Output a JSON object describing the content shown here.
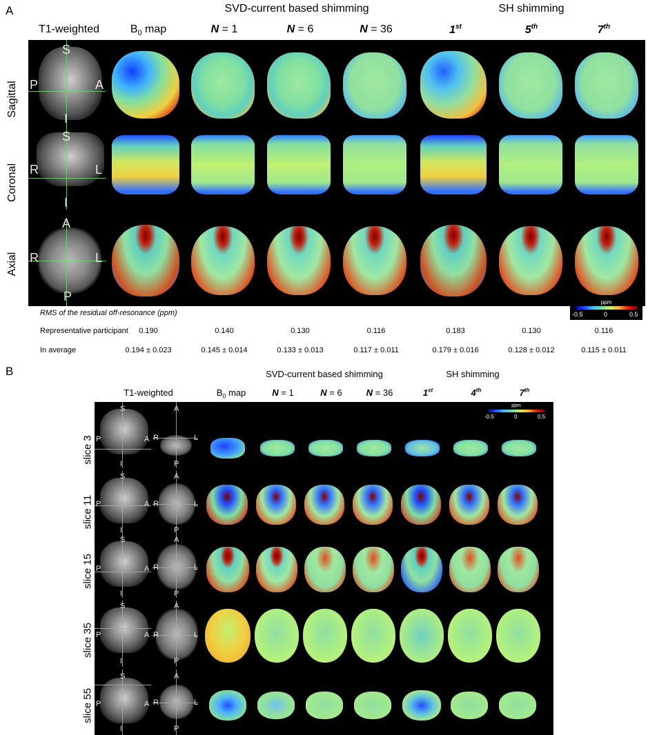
{
  "panel_a": {
    "label": "A",
    "group_svd": "SVD-current based shimming",
    "group_sh": "SH shimming",
    "columns": {
      "t1": "T1-weighted",
      "b0_prefix": "B",
      "b0_sub": "0",
      "b0_suffix": " map",
      "n1_n": "N",
      "n1_val": " = 1",
      "n6_n": "N",
      "n6_val": " = 6",
      "n36_n": "N",
      "n36_val": " = 36",
      "sh1_base": "1",
      "sh1_sup": "st",
      "sh5_base": "5",
      "sh5_sup": "th",
      "sh7_base": "7",
      "sh7_sup": "th"
    },
    "rows": [
      "Sagittal",
      "Coronal",
      "Axial"
    ],
    "orient": {
      "sag": [
        "S",
        "P",
        "A",
        "I"
      ],
      "cor": [
        "S",
        "R",
        "L",
        "I"
      ],
      "ax": [
        "A",
        "R",
        "L",
        "P"
      ]
    },
    "colorbar": {
      "unit": "ppm",
      "min": "-0.5",
      "mid": "0",
      "max": "0.5"
    },
    "stats": {
      "title": "RMS of the residual off-resonance (ppm)",
      "rep_label": "Representative participant",
      "rep_values": [
        "0.190",
        "0.140",
        "0.130",
        "0.116",
        "0.183",
        "0.130",
        "0.116"
      ],
      "avg_label": "In average",
      "avg_values": [
        "0.194 ± 0.023",
        "0.145 ± 0.014",
        "0.133 ± 0.013",
        "0.117 ± 0.011",
        "0.179 ± 0.016",
        "0.128 ± 0.012",
        "0.115 ± 0.011"
      ]
    }
  },
  "panel_b": {
    "label": "B",
    "group_svd": "SVD-current based shimming",
    "group_sh": "SH shimming",
    "columns": {
      "t1": "T1-weighted",
      "b0_prefix": "B",
      "b0_sub": "0",
      "b0_suffix": " map",
      "n1_n": "N",
      "n1_val": " = 1",
      "n6_n": "N",
      "n6_val": " = 6",
      "n36_n": "N",
      "n36_val": " = 36",
      "sh1_base": "1",
      "sh1_sup": "st",
      "sh4_base": "4",
      "sh4_sup": "th",
      "sh7_base": "7",
      "sh7_sup": "th"
    },
    "rows": [
      "slice 3",
      "slice 11",
      "slice 15",
      "slice 35",
      "slice 55"
    ],
    "orient_sag": [
      "S",
      "P",
      "A",
      "I"
    ],
    "orient_ax": [
      "A",
      "R",
      "L",
      "P"
    ],
    "colorbar": {
      "unit": "ppm",
      "min": "-0.5",
      "mid": "0",
      "max": "0.5"
    }
  }
}
